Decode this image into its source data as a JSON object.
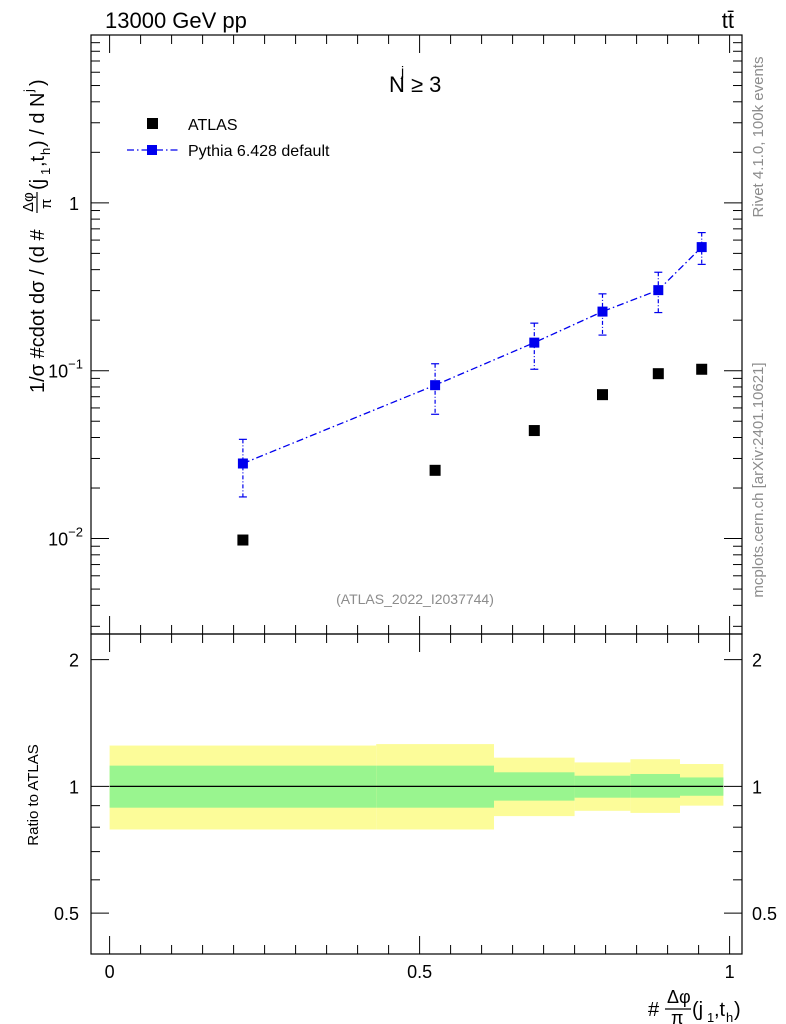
{
  "header": {
    "energy_label": "13000 GeV pp",
    "process_label": "tt̄"
  },
  "side_labels": {
    "rivet": "Rivet 4.1.0,  100k events",
    "source": "mcplots.cern.ch [arXiv:2401.10621]"
  },
  "analysis_tag": "(ATLAS_2022_I2037744)",
  "cut_label": "N ≥ 3",
  "cut_superscript": "j",
  "colors": {
    "data": "#000000",
    "mc": "#0000ee",
    "band_inner": "#99f58f",
    "band_outer": "#fcfc99"
  },
  "chart_data": [
    {
      "type": "scatter",
      "panel": "main",
      "ylabel": "1/σ #cdot dσ / (d #Δφ/π(j1,th) / d Nj)",
      "yscale": "log",
      "ylim": [
        0.0027,
        10
      ],
      "xlim": [
        -0.03,
        1.02
      ],
      "y_ticks": [
        {
          "value": 0.01,
          "base": "10",
          "exp": "−2"
        },
        {
          "value": 0.1,
          "base": "10",
          "exp": "−1"
        },
        {
          "value": 1,
          "base": "1",
          "exp": ""
        }
      ],
      "legend": {
        "position": "top-left",
        "entries": [
          {
            "label": "ATLAS",
            "marker": "square",
            "color": "#000000"
          },
          {
            "label": "Pythia 6.428 default",
            "marker": "square-dashdot",
            "color": "#0000ee"
          }
        ]
      },
      "series": [
        {
          "name": "ATLAS",
          "x": [
            0.215,
            0.525,
            0.685,
            0.795,
            0.885,
            0.955
          ],
          "y": [
            0.0098,
            0.0255,
            0.044,
            0.072,
            0.096,
            0.102
          ]
        },
        {
          "name": "Pythia 6.428 default",
          "x": [
            0.215,
            0.525,
            0.685,
            0.795,
            0.885,
            0.955
          ],
          "y": [
            0.028,
            0.082,
            0.147,
            0.225,
            0.302,
            0.545
          ],
          "yerr_low": [
            0.0103,
            0.027,
            0.045,
            0.062,
            0.08,
            0.115
          ],
          "yerr_high": [
            0.011,
            0.028,
            0.045,
            0.062,
            0.084,
            0.12
          ]
        }
      ]
    },
    {
      "type": "area",
      "panel": "ratio",
      "ylabel": "Ratio to ATLAS",
      "xlabel": "#Δφ/π(j1,th)",
      "ylim": [
        0.4,
        2.3
      ],
      "xlim": [
        -0.03,
        1.02
      ],
      "x_ticks": [
        "0",
        "0.5",
        "1"
      ],
      "y_ticks": [
        "0.5",
        "1",
        "2"
      ],
      "reference_line": 1,
      "bins": [
        {
          "x_low": 0.0,
          "x_high": 0.43,
          "inner_low": 0.89,
          "inner_high": 1.12,
          "outer_low": 0.79,
          "outer_high": 1.25
        },
        {
          "x_low": 0.43,
          "x_high": 0.62,
          "inner_low": 0.89,
          "inner_high": 1.12,
          "outer_low": 0.79,
          "outer_high": 1.26
        },
        {
          "x_low": 0.62,
          "x_high": 0.75,
          "inner_low": 0.925,
          "inner_high": 1.08,
          "outer_low": 0.85,
          "outer_high": 1.17
        },
        {
          "x_low": 0.75,
          "x_high": 0.84,
          "inner_low": 0.94,
          "inner_high": 1.06,
          "outer_low": 0.875,
          "outer_high": 1.14
        },
        {
          "x_low": 0.84,
          "x_high": 0.92,
          "inner_low": 0.94,
          "inner_high": 1.07,
          "outer_low": 0.865,
          "outer_high": 1.16
        },
        {
          "x_low": 0.92,
          "x_high": 0.99,
          "inner_low": 0.95,
          "inner_high": 1.05,
          "outer_low": 0.9,
          "outer_high": 1.13
        }
      ]
    }
  ]
}
